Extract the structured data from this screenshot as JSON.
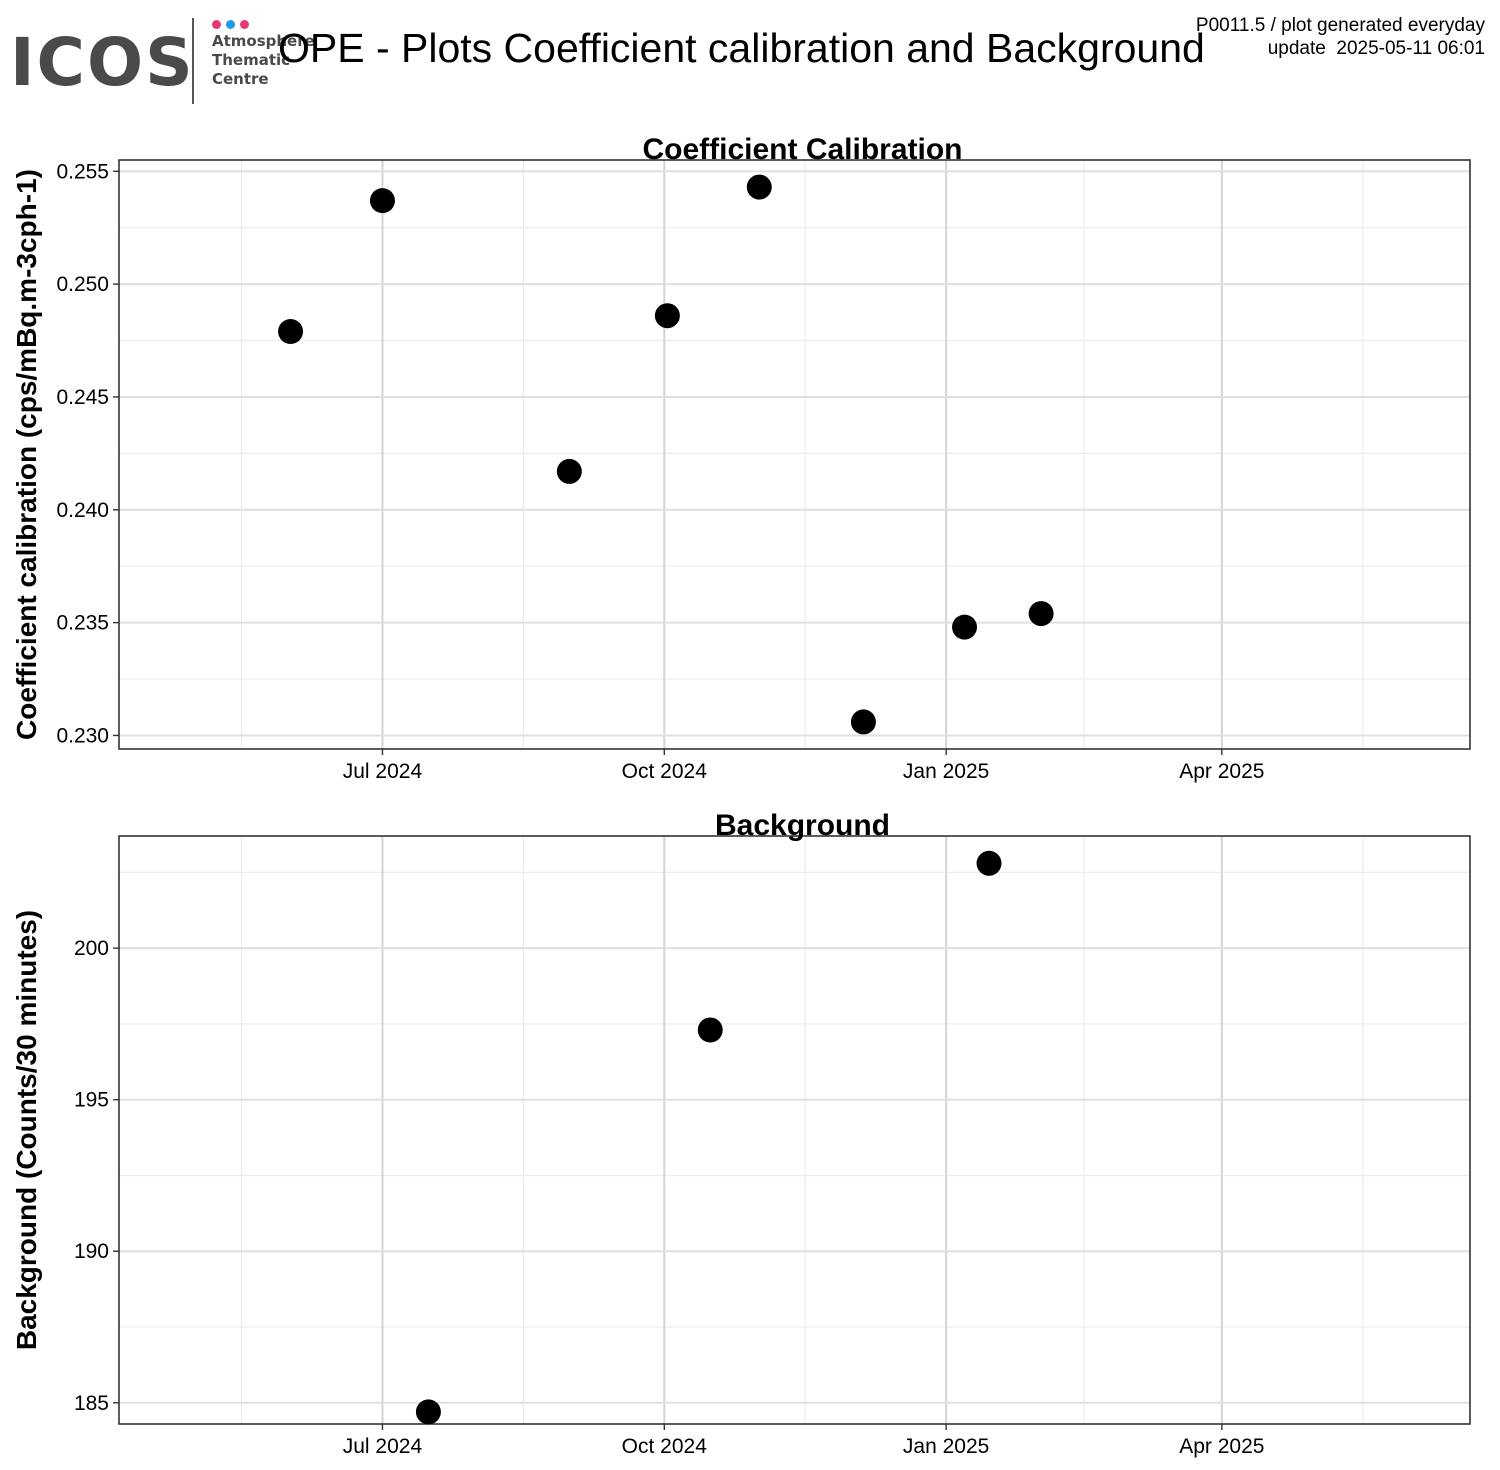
{
  "header": {
    "logo": {
      "word": "ICOS",
      "lines": [
        "Atmosphere",
        "Thematic",
        "Centre"
      ],
      "dot_colors": [
        "#e83a72",
        "#1e9be6",
        "#e83a72"
      ]
    },
    "title": "OPE - Plots Coefficient calibration and Background",
    "meta_line1": "P0011.5 / plot generated everyday",
    "meta_line2": "update  2025-05-11 06:01"
  },
  "chart_data": [
    {
      "type": "scatter",
      "title": "Coefficient Calibration",
      "xlabel": "",
      "ylabel": "Coefficient calibration (cps/mBq.m-3cph-1)",
      "xlim": [
        "2024-04-06",
        "2025-06-21"
      ],
      "ylim": [
        0.2294,
        0.2555
      ],
      "x_ticks": [
        "2024-07-01",
        "2024-10-01",
        "2025-01-01",
        "2025-04-01"
      ],
      "x_tick_labels": [
        "Jul 2024",
        "Oct 2024",
        "Jan 2025",
        "Apr 2025"
      ],
      "y_ticks": [
        0.23,
        0.235,
        0.24,
        0.245,
        0.25,
        0.255
      ],
      "y_tick_labels": [
        "0.230",
        "0.235",
        "0.240",
        "0.245",
        "0.250",
        "0.255"
      ],
      "grid": true,
      "marker_color": "#000000",
      "points": [
        {
          "x": "2024-06-01",
          "y": 0.2479
        },
        {
          "x": "2024-07-01",
          "y": 0.2537
        },
        {
          "x": "2024-08-31",
          "y": 0.2417
        },
        {
          "x": "2024-10-02",
          "y": 0.2486
        },
        {
          "x": "2024-11-01",
          "y": 0.2543
        },
        {
          "x": "2024-12-05",
          "y": 0.2306
        },
        {
          "x": "2025-01-07",
          "y": 0.2348
        },
        {
          "x": "2025-02-01",
          "y": 0.2354
        }
      ]
    },
    {
      "type": "scatter",
      "title": "Background",
      "xlabel": "",
      "ylabel": "Background (Counts/30 minutes)",
      "xlim": [
        "2024-04-06",
        "2025-06-21"
      ],
      "ylim": [
        184.3,
        203.7
      ],
      "x_ticks": [
        "2024-07-01",
        "2024-10-01",
        "2025-01-01",
        "2025-04-01"
      ],
      "x_tick_labels": [
        "Jul 2024",
        "Oct 2024",
        "Jan 2025",
        "Apr 2025"
      ],
      "y_ticks": [
        185,
        190,
        195,
        200
      ],
      "y_tick_labels": [
        "185",
        "190",
        "195",
        "200"
      ],
      "grid": true,
      "marker_color": "#000000",
      "points": [
        {
          "x": "2024-07-16",
          "y": 184.7
        },
        {
          "x": "2024-10-16",
          "y": 197.3
        },
        {
          "x": "2025-01-15",
          "y": 202.8
        }
      ]
    }
  ]
}
